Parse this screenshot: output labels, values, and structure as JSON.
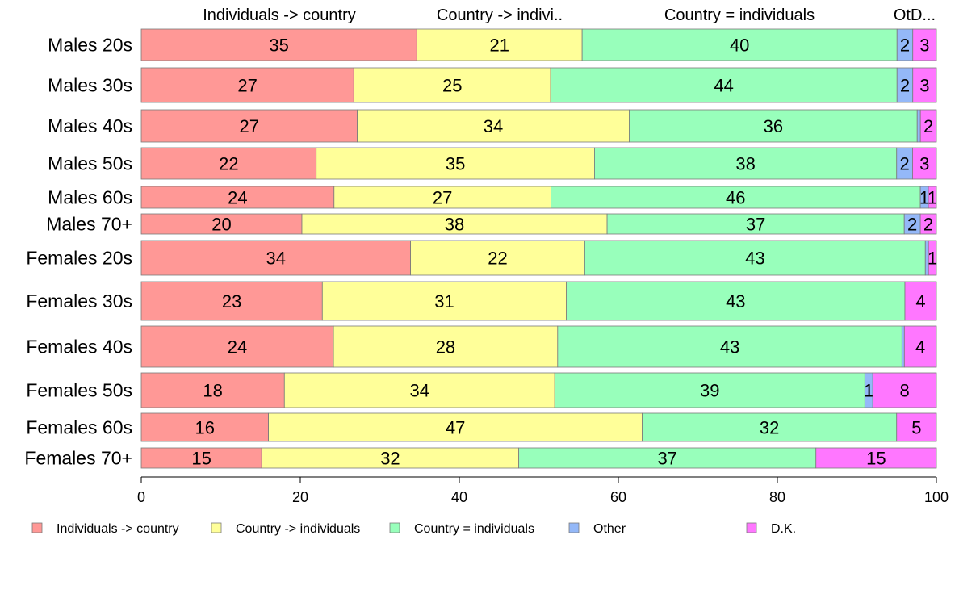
{
  "chart_data": {
    "type": "bar",
    "orientation": "horizontal",
    "stacked": "percent",
    "top_labels": [
      "Individuals -> country",
      "Country -> indivi..",
      "Country = individuals",
      "OtD..."
    ],
    "xlim": [
      0,
      100
    ],
    "x_ticks": [
      "0",
      "20",
      "40",
      "60",
      "80",
      "100"
    ],
    "categories": [
      "Males 20s",
      "Males 30s",
      "Males 40s",
      "Males 50s",
      "Males 60s",
      "Males 70+",
      "Females 20s",
      "Females 30s",
      "Females 40s",
      "Females 50s",
      "Females 60s",
      "Females 70+"
    ],
    "series": [
      {
        "name": "Individuals -> country",
        "color": "#ff9896",
        "values": [
          35,
          27,
          27,
          22,
          24,
          20,
          34,
          23,
          24,
          18,
          16,
          15
        ]
      },
      {
        "name": "Country -> individuals",
        "color": "#ffff99",
        "values": [
          21,
          25,
          34,
          35,
          27,
          38,
          22,
          31,
          28,
          34,
          47,
          32
        ]
      },
      {
        "name": "Country = individuals",
        "color": "#98ffbb",
        "values": [
          40,
          44,
          36,
          38,
          46,
          37,
          43,
          43,
          43,
          39,
          32,
          37
        ]
      },
      {
        "name": "Other",
        "color": "#94b8f8",
        "values": [
          2,
          2,
          0.4,
          2,
          1,
          2,
          0.4,
          0,
          0.3,
          1,
          0,
          0
        ]
      },
      {
        "name": "D.K.",
        "color": "#ff77ff",
        "values": [
          3,
          3,
          2,
          3,
          1,
          2,
          1,
          4,
          4,
          8,
          5,
          15
        ]
      }
    ],
    "labels": [
      [
        "35",
        "21",
        "40",
        "2",
        "3"
      ],
      [
        "27",
        "25",
        "44",
        "2",
        "3"
      ],
      [
        "27",
        "34",
        "36",
        "",
        "2"
      ],
      [
        "22",
        "35",
        "38",
        "2",
        "3"
      ],
      [
        "24",
        "27",
        "46",
        "1",
        "1"
      ],
      [
        "20",
        "38",
        "37",
        "2",
        "2"
      ],
      [
        "34",
        "22",
        "43",
        "",
        "1"
      ],
      [
        "23",
        "31",
        "43",
        "",
        "4"
      ],
      [
        "24",
        "28",
        "43",
        "",
        "4"
      ],
      [
        "18",
        "34",
        "39",
        "1",
        "8"
      ],
      [
        "16",
        "47",
        "32",
        "",
        "5"
      ],
      [
        "15",
        "32",
        "37",
        "",
        "15"
      ]
    ],
    "legend": {
      "position": "bottom",
      "items": [
        "Individuals -> country",
        "Country -> individuals",
        "Country = individuals",
        "Other",
        "D.K."
      ]
    }
  }
}
